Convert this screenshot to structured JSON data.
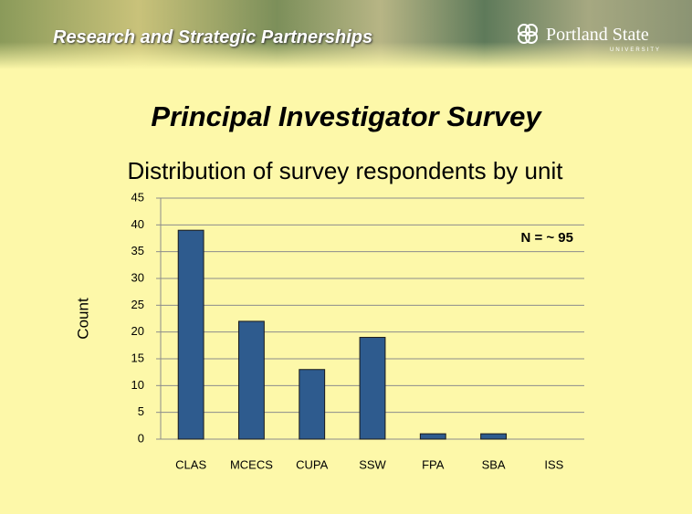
{
  "header": {
    "title": "Research and Strategic Partnerships",
    "logo_text": "Portland State",
    "logo_subtext": "UNIVERSITY"
  },
  "slide_title": "Principal Investigator Survey",
  "chart_data": {
    "type": "bar",
    "title": "Distribution of survey respondents by unit",
    "y_label": "Count",
    "annotation": "N = ~ 95",
    "categories": [
      "CLAS",
      "MCECS",
      "CUPA",
      "SSW",
      "FPA",
      "SBA",
      "ISS"
    ],
    "values": [
      39,
      22,
      13,
      19,
      1,
      1,
      0
    ],
    "color": "#2e5b8e",
    "ylim": [
      0,
      45
    ],
    "yticks": [
      0,
      5,
      10,
      15,
      20,
      25,
      30,
      35,
      40,
      45
    ],
    "grid": true
  }
}
